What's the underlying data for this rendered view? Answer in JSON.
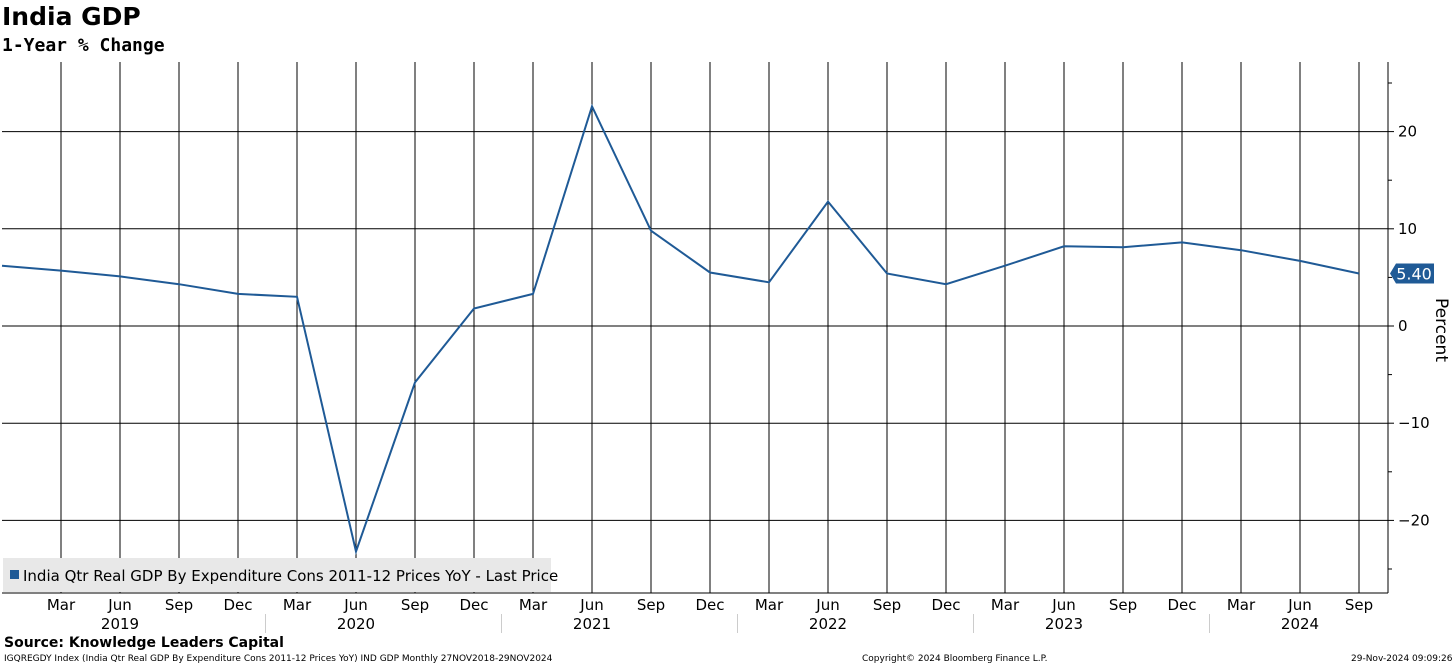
{
  "header": {
    "title": "India GDP",
    "subtitle": "1-Year % Change"
  },
  "footer": {
    "source": "Source: Knowledge Leaders Capital",
    "ticker_line": "IGQREGDY Index (India Qtr Real GDP By Expenditure Cons 2011-12 Prices YoY) IND GDP  Monthly 27NOV2018-29NOV2024",
    "copyright": "Copyright© 2024 Bloomberg Finance L.P.",
    "timestamp": "29-Nov-2024 09:09:26"
  },
  "colors": {
    "series": "#1f5a96",
    "grid": "#000000",
    "legend_bg": "#e8e8e8"
  },
  "chart_data": {
    "type": "line",
    "title": "India GDP",
    "subtitle": "1-Year % Change",
    "ylabel": "Percent",
    "y_axis_position": "right",
    "ylim": [
      -27,
      27
    ],
    "yticks": [
      -20,
      -10,
      0,
      10,
      20
    ],
    "grid": true,
    "legend_position": "bottom-left",
    "x_month_labels": [
      "Mar",
      "Jun",
      "Sep",
      "Dec",
      "Mar",
      "Jun",
      "Sep",
      "Dec",
      "Mar",
      "Jun",
      "Sep",
      "Dec",
      "Mar",
      "Jun",
      "Sep",
      "Dec",
      "Mar",
      "Jun",
      "Sep",
      "Dec",
      "Mar",
      "Jun",
      "Sep"
    ],
    "x_year_labels": [
      "2019",
      "2020",
      "2021",
      "2022",
      "2023",
      "2024"
    ],
    "last_value_label": "5.40",
    "series": [
      {
        "name": "India Qtr Real GDP By Expenditure Cons 2011-12 Prices YoY - Last Price",
        "x": [
          "2018-12",
          "2019-03",
          "2019-06",
          "2019-09",
          "2019-12",
          "2020-03",
          "2020-06",
          "2020-09",
          "2020-12",
          "2021-03",
          "2021-06",
          "2021-09",
          "2021-12",
          "2022-03",
          "2022-06",
          "2022-09",
          "2022-12",
          "2023-03",
          "2023-06",
          "2023-09",
          "2023-12",
          "2024-03",
          "2024-06",
          "2024-09"
        ],
        "values": [
          6.2,
          5.7,
          5.1,
          4.3,
          3.3,
          3.0,
          -23.2,
          -5.8,
          1.8,
          3.3,
          22.6,
          9.8,
          5.5,
          4.5,
          12.8,
          5.4,
          4.3,
          6.2,
          8.2,
          8.1,
          8.6,
          7.8,
          6.7,
          5.4
        ]
      }
    ]
  }
}
